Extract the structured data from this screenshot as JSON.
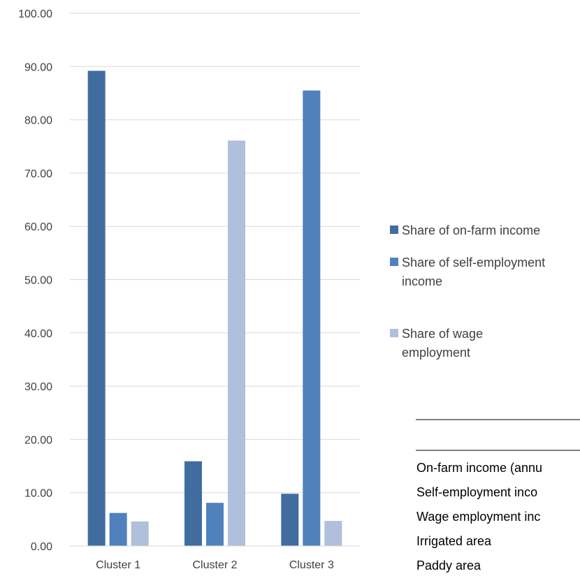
{
  "chart_data": {
    "type": "bar",
    "categories": [
      "Cluster 1",
      "Cluster 2",
      "Cluster 3"
    ],
    "series": [
      {
        "name": "Share of on-farm income",
        "values": [
          89.2,
          15.9,
          9.8
        ],
        "color": "#416C9F",
        "legend_lines": [
          "Share of on-farm income"
        ]
      },
      {
        "name": "Share of self-employment income",
        "values": [
          6.2,
          8.1,
          85.5
        ],
        "color": "#4F81BD",
        "legend_lines": [
          "Share of self-employment",
          "income"
        ]
      },
      {
        "name": "Share of wage employment",
        "values": [
          4.6,
          76.1,
          4.7
        ],
        "color": "#AFBFDC",
        "legend_lines": [
          "Share of wage",
          "employment"
        ]
      }
    ],
    "ylim": [
      0,
      100
    ],
    "yticks": [
      "0.00",
      "10.00",
      "20.00",
      "30.00",
      "40.00",
      "50.00",
      "60.00",
      "70.00",
      "80.00",
      "90.00",
      "100.00"
    ],
    "grid": true,
    "legend_position": "right",
    "gridline_color": "#D9D9D9"
  },
  "overlay_table": {
    "rows": [
      "On-farm income (annu",
      "Self-employment inco",
      "Wage employment inc",
      "Irrigated area",
      "Paddy area"
    ]
  }
}
